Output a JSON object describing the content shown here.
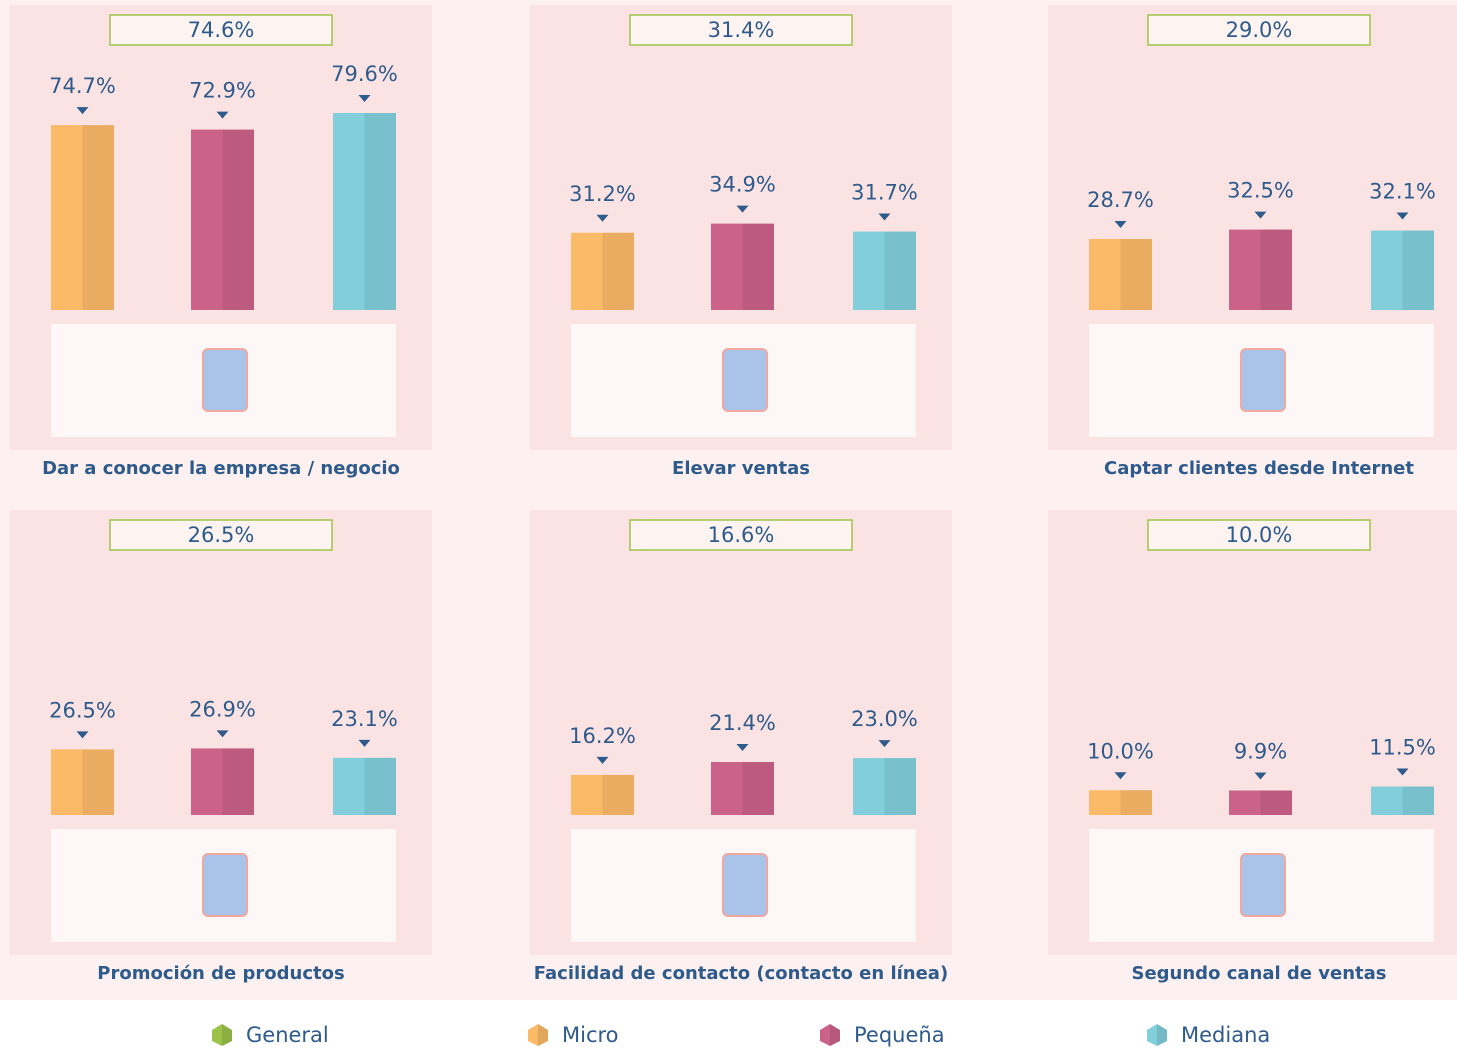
{
  "chart_data": {
    "type": "bar",
    "categories": [
      "Dar a conocer la empresa / negocio",
      "Elevar ventas",
      "Captar clientes desde Internet",
      "Promoción de productos",
      "Facilidad de contacto (contacto en línea)",
      "Segundo canal de ventas"
    ],
    "ylim": [
      0,
      80
    ],
    "series": [
      {
        "name": "General",
        "color": "#9bc34a",
        "values": [
          74.6,
          31.4,
          29.0,
          26.5,
          16.6,
          10.0
        ],
        "value_labels": [
          "74.6%",
          "31.4%",
          "29.0%",
          "26.5%",
          "16.6%",
          "10.0%"
        ]
      },
      {
        "name": "Micro",
        "color": "#fbba68",
        "values": [
          74.7,
          31.2,
          28.7,
          26.5,
          16.2,
          10.0
        ],
        "value_labels": [
          "74.7%",
          "31.2%",
          "28.7%",
          "26.5%",
          "16.2%",
          "10.0%"
        ]
      },
      {
        "name": "Pequeña",
        "color": "#cb6289",
        "values": [
          72.9,
          34.9,
          32.5,
          26.9,
          21.4,
          9.9
        ],
        "value_labels": [
          "72.9%",
          "34.9%",
          "32.5%",
          "26.9%",
          "21.4%",
          "9.9%"
        ]
      },
      {
        "name": "Mediana",
        "color": "#82cfdb",
        "values": [
          79.6,
          31.7,
          32.1,
          23.1,
          23.0,
          11.5
        ],
        "value_labels": [
          "79.6%",
          "31.7%",
          "32.1%",
          "23.1%",
          "23.0%",
          "11.5%"
        ]
      }
    ]
  }
}
